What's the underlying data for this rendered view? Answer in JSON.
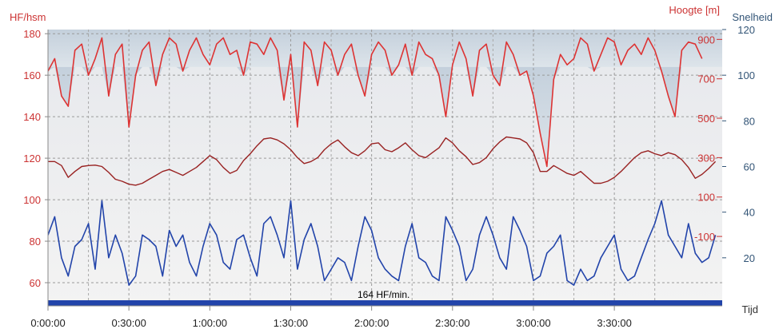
{
  "chart_data": {
    "type": "line",
    "axes": {
      "left": {
        "label": "HF/hsm",
        "color": "#cc3333",
        "min": 50,
        "max": 182,
        "ticks": [
          60,
          80,
          100,
          120,
          140,
          160,
          180
        ]
      },
      "right_inner": {
        "label": "Hoogte [m]",
        "color": "#cc3333",
        "min": -440,
        "max": 950,
        "ticks": [
          -100,
          100,
          300,
          500,
          700,
          900
        ]
      },
      "right_outer": {
        "label": "Snelheid",
        "color": "#335577",
        "min": 0,
        "max": 120,
        "ticks": [
          20,
          40,
          60,
          80,
          100,
          120
        ]
      },
      "x": {
        "label": "Tijd",
        "unit": "seconds",
        "min": 0,
        "max": 15000,
        "ticks": [
          {
            "t": 0,
            "label": "0:00:00"
          },
          {
            "t": 1800,
            "label": "0:30:00"
          },
          {
            "t": 3600,
            "label": "1:00:00"
          },
          {
            "t": 5400,
            "label": "1:30:00"
          },
          {
            "t": 7200,
            "label": "2:00:00"
          },
          {
            "t": 9000,
            "label": "2:30:00"
          },
          {
            "t": 10800,
            "label": "3:00:00"
          },
          {
            "t": 12600,
            "label": "3:30:00"
          }
        ]
      }
    },
    "grid": true,
    "zone_label": "164 HF/min.",
    "zone_threshold_hr": 164,
    "series": [
      {
        "axis": "left",
        "color": "#dd3333",
        "x": [
          0,
          150,
          300,
          450,
          600,
          750,
          900,
          1050,
          1200,
          1350,
          1500,
          1650,
          1800,
          1950,
          2100,
          2250,
          2400,
          2550,
          2700,
          2850,
          3000,
          3150,
          3300,
          3450,
          3600,
          3750,
          3900,
          4050,
          4200,
          4350,
          4500,
          4650,
          4800,
          4950,
          5100,
          5250,
          5400,
          5550,
          5700,
          5850,
          6000,
          6150,
          6300,
          6450,
          6600,
          6750,
          6900,
          7050,
          7200,
          7350,
          7500,
          7650,
          7800,
          7950,
          8100,
          8250,
          8400,
          8550,
          8700,
          8850,
          9000,
          9150,
          9300,
          9450,
          9600,
          9750,
          9900,
          10050,
          10200,
          10350,
          10500,
          10650,
          10800,
          10950,
          11100,
          11250,
          11400,
          11550,
          11700,
          11850,
          12000,
          12150,
          12300,
          12450,
          12600,
          12750,
          12900,
          13050,
          13200,
          13350,
          13500,
          13650,
          13800,
          13950,
          14100,
          14250,
          14400,
          14550
        ],
        "values": [
          162,
          168,
          150,
          145,
          172,
          175,
          160,
          168,
          178,
          150,
          170,
          175,
          135,
          160,
          172,
          176,
          155,
          170,
          178,
          175,
          162,
          172,
          178,
          170,
          165,
          175,
          178,
          170,
          172,
          160,
          176,
          175,
          170,
          178,
          172,
          148,
          170,
          135,
          176,
          172,
          155,
          176,
          172,
          160,
          170,
          175,
          160,
          150,
          170,
          176,
          172,
          160,
          165,
          175,
          160,
          176,
          170,
          168,
          160,
          140,
          165,
          176,
          168,
          150,
          172,
          175,
          160,
          155,
          176,
          170,
          160,
          162,
          150,
          132,
          116,
          158,
          170,
          165,
          168,
          178,
          175,
          162,
          170,
          178,
          176,
          165,
          172,
          175,
          170,
          178,
          172,
          162,
          150,
          140,
          172,
          176,
          175,
          168
        ]
      },
      {
        "axis": "right_inner",
        "color": "#992222",
        "x": [
          0,
          150,
          300,
          450,
          600,
          750,
          900,
          1050,
          1200,
          1350,
          1500,
          1650,
          1800,
          1950,
          2100,
          2250,
          2400,
          2550,
          2700,
          2850,
          3000,
          3150,
          3300,
          3450,
          3600,
          3750,
          3900,
          4050,
          4200,
          4350,
          4500,
          4650,
          4800,
          4950,
          5100,
          5250,
          5400,
          5550,
          5700,
          5850,
          6000,
          6150,
          6300,
          6450,
          6600,
          6750,
          6900,
          7050,
          7200,
          7350,
          7500,
          7650,
          7800,
          7950,
          8100,
          8250,
          8400,
          8550,
          8700,
          8850,
          9000,
          9150,
          9300,
          9450,
          9600,
          9750,
          9900,
          10050,
          10200,
          10350,
          10500,
          10650,
          10800,
          10950,
          11100,
          11250,
          11400,
          11550,
          11700,
          11850,
          12000,
          12150,
          12300,
          12450,
          12600,
          12750,
          12900,
          13050,
          13200,
          13350,
          13500,
          13650,
          13800,
          13950,
          14100,
          14250,
          14400,
          14550,
          14700,
          14850
        ],
        "values": [
          280,
          280,
          260,
          200,
          230,
          255,
          260,
          262,
          255,
          225,
          190,
          180,
          165,
          160,
          170,
          190,
          210,
          230,
          240,
          225,
          210,
          230,
          250,
          280,
          310,
          290,
          250,
          220,
          235,
          285,
          320,
          360,
          395,
          400,
          390,
          370,
          340,
          300,
          270,
          280,
          300,
          340,
          370,
          390,
          355,
          325,
          310,
          335,
          370,
          375,
          340,
          330,
          350,
          375,
          340,
          310,
          300,
          325,
          350,
          400,
          375,
          335,
          305,
          265,
          275,
          300,
          345,
          380,
          405,
          400,
          395,
          375,
          325,
          230,
          230,
          260,
          240,
          220,
          210,
          230,
          200,
          170,
          170,
          180,
          200,
          230,
          265,
          300,
          325,
          335,
          320,
          310,
          325,
          315,
          290,
          250,
          195,
          215,
          245,
          280
        ]
      },
      {
        "axis": "right_outer",
        "color": "#2244aa",
        "x": [
          0,
          150,
          300,
          450,
          600,
          750,
          900,
          1050,
          1200,
          1350,
          1500,
          1650,
          1800,
          1950,
          2100,
          2250,
          2400,
          2550,
          2700,
          2850,
          3000,
          3150,
          3300,
          3450,
          3600,
          3750,
          3900,
          4050,
          4200,
          4350,
          4500,
          4650,
          4800,
          4950,
          5100,
          5250,
          5400,
          5550,
          5700,
          5850,
          6000,
          6150,
          6300,
          6450,
          6600,
          6750,
          6900,
          7050,
          7200,
          7350,
          7500,
          7650,
          7800,
          7950,
          8100,
          8250,
          8400,
          8550,
          8700,
          8850,
          9000,
          9150,
          9300,
          9450,
          9600,
          9750,
          9900,
          10050,
          10200,
          10350,
          10500,
          10650,
          10800,
          10950,
          11100,
          11250,
          11400,
          11550,
          11700,
          11850,
          12000,
          12150,
          12300,
          12450,
          12600,
          12750,
          12900,
          13050,
          13200,
          13350,
          13500,
          13650,
          13800,
          13950,
          14100,
          14250,
          14400,
          14550,
          14700,
          14850
        ],
        "values": [
          30,
          38,
          20,
          12,
          25,
          28,
          35,
          15,
          45,
          20,
          30,
          22,
          8,
          12,
          30,
          28,
          25,
          12,
          32,
          25,
          30,
          18,
          12,
          25,
          35,
          30,
          18,
          15,
          28,
          30,
          20,
          12,
          35,
          38,
          30,
          20,
          45,
          15,
          28,
          35,
          25,
          10,
          15,
          20,
          18,
          10,
          25,
          38,
          32,
          20,
          15,
          12,
          10,
          25,
          35,
          20,
          18,
          12,
          10,
          38,
          32,
          25,
          10,
          15,
          30,
          38,
          30,
          20,
          15,
          38,
          32,
          25,
          10,
          12,
          22,
          25,
          30,
          10,
          8,
          15,
          10,
          12,
          20,
          25,
          30,
          15,
          10,
          12,
          20,
          28,
          35,
          45,
          30,
          25,
          20,
          35,
          22,
          18,
          20,
          30
        ]
      }
    ]
  }
}
